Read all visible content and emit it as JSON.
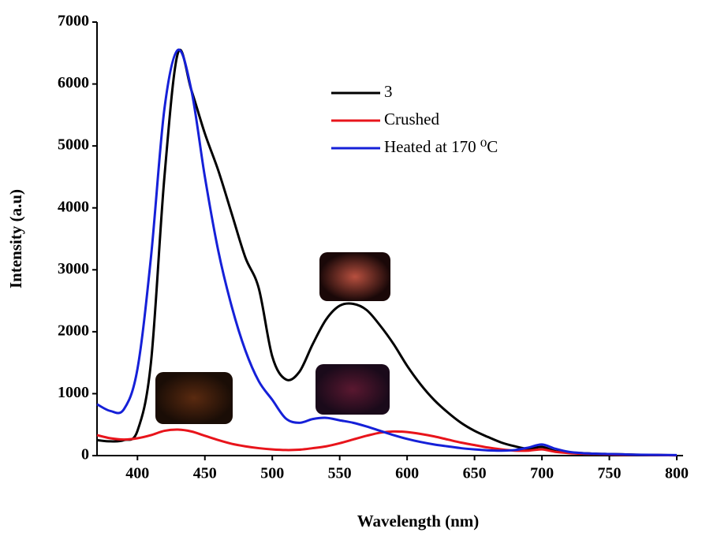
{
  "chart_data": {
    "type": "line",
    "x_label": "Wavelength (nm)",
    "y_label": "Intensity (a.u)",
    "x": [
      370,
      380,
      390,
      400,
      410,
      420,
      430,
      440,
      450,
      460,
      470,
      480,
      490,
      500,
      510,
      520,
      530,
      540,
      550,
      560,
      570,
      580,
      590,
      600,
      610,
      620,
      630,
      640,
      650,
      660,
      670,
      680,
      690,
      700,
      710,
      720,
      730,
      740,
      750,
      760,
      770,
      780,
      790,
      800
    ],
    "series": [
      {
        "name": "3",
        "color": "#000000",
        "values": [
          250,
          230,
          250,
          400,
          1500,
          4500,
          6500,
          5900,
          5200,
          4600,
          3900,
          3200,
          2700,
          1600,
          1230,
          1350,
          1800,
          2200,
          2420,
          2450,
          2350,
          2100,
          1800,
          1450,
          1150,
          900,
          700,
          530,
          400,
          300,
          210,
          150,
          110,
          140,
          70,
          50,
          40,
          30,
          25,
          20,
          15,
          10,
          8,
          5
        ]
      },
      {
        "name": "Crushed",
        "color": "#e8141b",
        "values": [
          330,
          280,
          260,
          280,
          330,
          400,
          420,
          390,
          320,
          250,
          190,
          150,
          120,
          100,
          90,
          95,
          120,
          150,
          200,
          260,
          320,
          370,
          390,
          380,
          350,
          310,
          260,
          210,
          170,
          130,
          100,
          80,
          80,
          100,
          60,
          40,
          30,
          25,
          20,
          15,
          12,
          10,
          8,
          5
        ]
      },
      {
        "name": "Heated at 170 ⁰C",
        "color": "#1520d8",
        "values": [
          830,
          720,
          750,
          1400,
          3200,
          5600,
          6550,
          5900,
          4500,
          3300,
          2400,
          1700,
          1200,
          900,
          600,
          530,
          590,
          610,
          570,
          530,
          470,
          400,
          330,
          270,
          220,
          180,
          150,
          120,
          100,
          85,
          80,
          90,
          130,
          180,
          110,
          60,
          40,
          30,
          25,
          20,
          15,
          12,
          10,
          8
        ]
      }
    ],
    "xlim": [
      370,
      800
    ],
    "ylim": [
      0,
      7000
    ],
    "xticks": [
      400,
      450,
      500,
      550,
      600,
      650,
      700,
      750,
      800
    ],
    "yticks": [
      0,
      1000,
      2000,
      3000,
      4000,
      5000,
      6000,
      7000
    ]
  }
}
